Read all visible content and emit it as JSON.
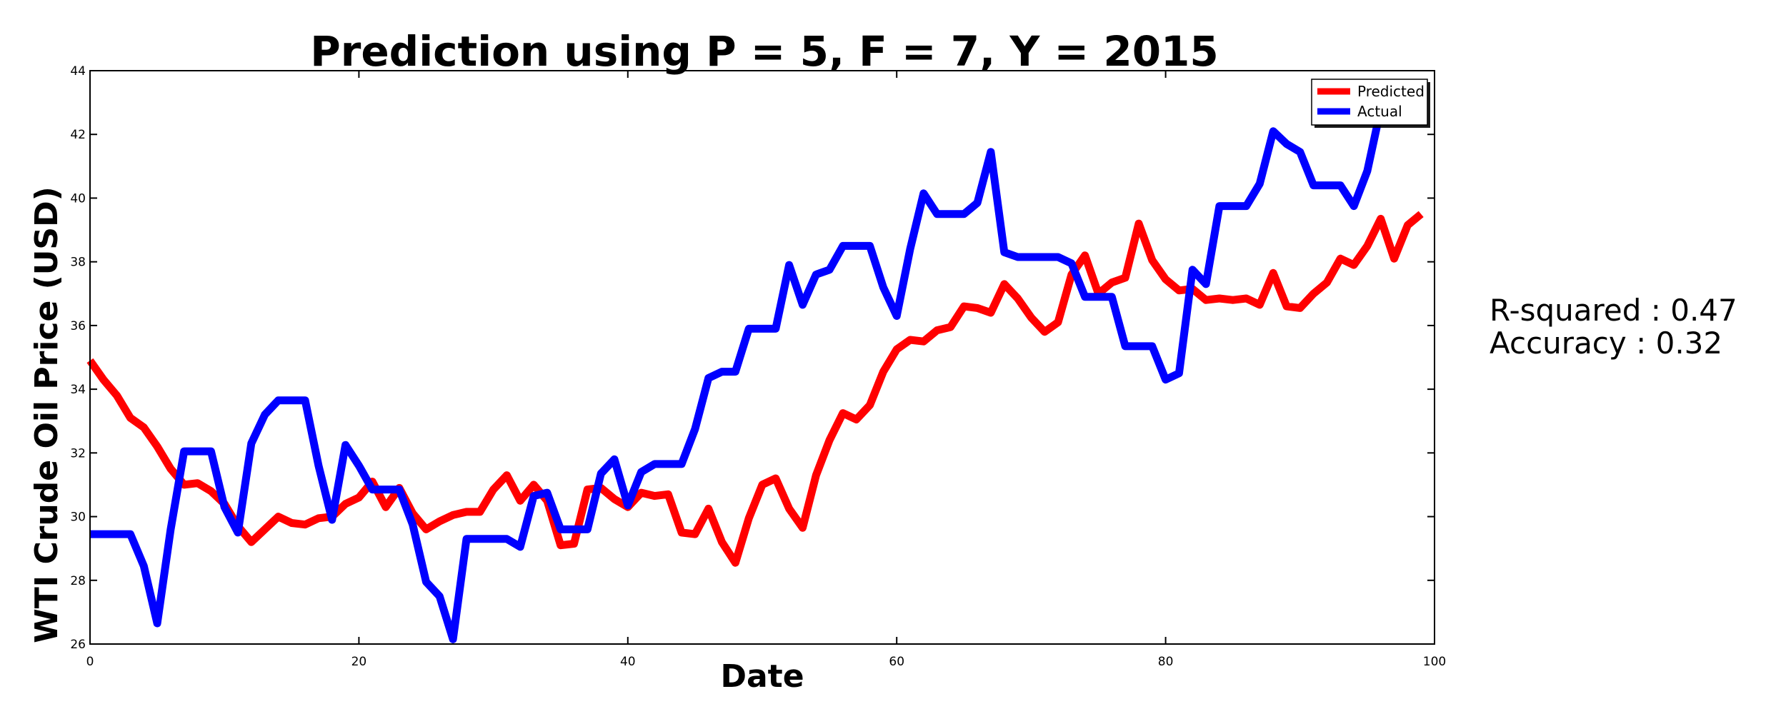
{
  "chart_data": {
    "type": "line",
    "title": "Prediction using P = 5, F = 7, Y = 2015",
    "xlabel": "Date",
    "ylabel": "WTI Crude Oil Price (USD)",
    "xlim": [
      0,
      100
    ],
    "ylim": [
      26,
      44
    ],
    "xticks": [
      0,
      20,
      40,
      60,
      80,
      100
    ],
    "yticks": [
      26,
      28,
      30,
      32,
      34,
      36,
      38,
      40,
      42,
      44
    ],
    "grid": false,
    "legend": "top-right",
    "series": [
      {
        "name": "Predicted",
        "color": "#ff0000",
        "x": [
          0,
          1,
          2,
          3,
          4,
          5,
          6,
          7,
          8,
          9,
          10,
          11,
          12,
          13,
          14,
          15,
          16,
          17,
          18,
          19,
          20,
          21,
          22,
          23,
          24,
          25,
          26,
          27,
          28,
          29,
          30,
          31,
          32,
          33,
          34,
          35,
          36,
          37,
          38,
          39,
          40,
          41,
          42,
          43,
          44,
          45,
          46,
          47,
          48,
          49,
          50,
          51,
          52,
          53,
          54,
          55,
          56,
          57,
          58,
          59,
          60,
          61,
          62,
          63,
          64,
          65,
          66,
          67,
          68,
          69,
          70,
          71,
          72,
          73,
          74,
          75,
          76,
          77,
          78,
          79,
          80,
          81,
          82,
          83,
          84,
          85,
          86,
          87,
          88,
          89,
          90,
          91,
          92,
          93,
          94,
          95,
          96,
          97,
          98,
          99
        ],
        "values": [
          34.9,
          34.3,
          33.8,
          33.1,
          32.8,
          32.2,
          31.5,
          31.0,
          31.05,
          30.8,
          30.4,
          29.7,
          29.2,
          29.6,
          30.0,
          29.8,
          29.75,
          29.95,
          30.0,
          30.4,
          30.6,
          31.1,
          30.3,
          30.9,
          30.1,
          29.6,
          29.85,
          30.05,
          30.15,
          30.15,
          30.85,
          31.3,
          30.5,
          31.0,
          30.5,
          29.1,
          29.15,
          30.85,
          30.9,
          30.55,
          30.3,
          30.75,
          30.65,
          30.7,
          29.5,
          29.45,
          30.25,
          29.2,
          28.55,
          29.95,
          31.0,
          31.2,
          30.25,
          29.65,
          31.3,
          32.4,
          33.25,
          33.05,
          33.5,
          34.55,
          35.25,
          35.55,
          35.5,
          35.85,
          35.95,
          36.6,
          36.55,
          36.4,
          37.3,
          36.85,
          36.25,
          35.8,
          36.1,
          37.6,
          38.2,
          37.0,
          37.35,
          37.5,
          39.2,
          38.05,
          37.45,
          37.1,
          37.15,
          36.8,
          36.85,
          36.8,
          36.85,
          36.65,
          37.65,
          36.6,
          36.55,
          37.0,
          37.35,
          38.1,
          37.9,
          38.5,
          39.35,
          38.1,
          39.15,
          39.5
        ]
      },
      {
        "name": "Actual",
        "color": "#0000ff",
        "x": [
          0,
          1,
          2,
          3,
          4,
          5,
          6,
          7,
          8,
          9,
          10,
          11,
          12,
          13,
          14,
          15,
          16,
          17,
          18,
          19,
          20,
          21,
          22,
          23,
          24,
          25,
          26,
          27,
          28,
          29,
          30,
          31,
          32,
          33,
          34,
          35,
          36,
          37,
          38,
          39,
          40,
          41,
          42,
          43,
          44,
          45,
          46,
          47,
          48,
          49,
          50,
          51,
          52,
          53,
          54,
          55,
          56,
          57,
          58,
          59,
          60,
          61,
          62,
          63,
          64,
          65,
          66,
          67,
          68,
          69,
          70,
          71,
          72,
          73,
          74,
          75,
          76,
          77,
          78,
          79,
          80,
          81,
          82,
          83,
          84,
          85,
          86,
          87,
          88,
          89,
          90,
          91,
          92,
          93,
          94,
          95,
          96
        ],
        "values": [
          29.45,
          29.45,
          29.45,
          29.45,
          28.45,
          26.65,
          29.6,
          32.05,
          32.05,
          32.05,
          30.3,
          29.5,
          32.3,
          33.2,
          33.65,
          33.65,
          33.65,
          31.6,
          29.9,
          32.25,
          31.6,
          30.85,
          30.85,
          30.85,
          29.75,
          27.95,
          27.5,
          26.15,
          29.3,
          29.3,
          29.3,
          29.3,
          29.05,
          30.65,
          30.75,
          29.6,
          29.6,
          29.6,
          31.35,
          31.8,
          30.35,
          31.4,
          31.65,
          31.65,
          31.65,
          32.75,
          34.35,
          34.55,
          34.55,
          35.9,
          35.9,
          35.9,
          37.9,
          36.65,
          37.6,
          37.75,
          38.5,
          38.5,
          38.5,
          37.2,
          36.3,
          38.4,
          40.15,
          39.5,
          39.5,
          39.5,
          39.85,
          41.45,
          38.3,
          38.15,
          38.15,
          38.15,
          38.15,
          37.95,
          36.9,
          36.9,
          36.9,
          35.35,
          35.35,
          35.35,
          34.3,
          34.5,
          37.75,
          37.3,
          39.75,
          39.75,
          39.75,
          40.45,
          42.1,
          41.7,
          41.45,
          40.4,
          40.4,
          40.4,
          39.75,
          40.85,
          42.8
        ]
      }
    ]
  },
  "stats": {
    "r_squared": "R-squared : 0.47",
    "accuracy": "Accuracy : 0.32"
  }
}
